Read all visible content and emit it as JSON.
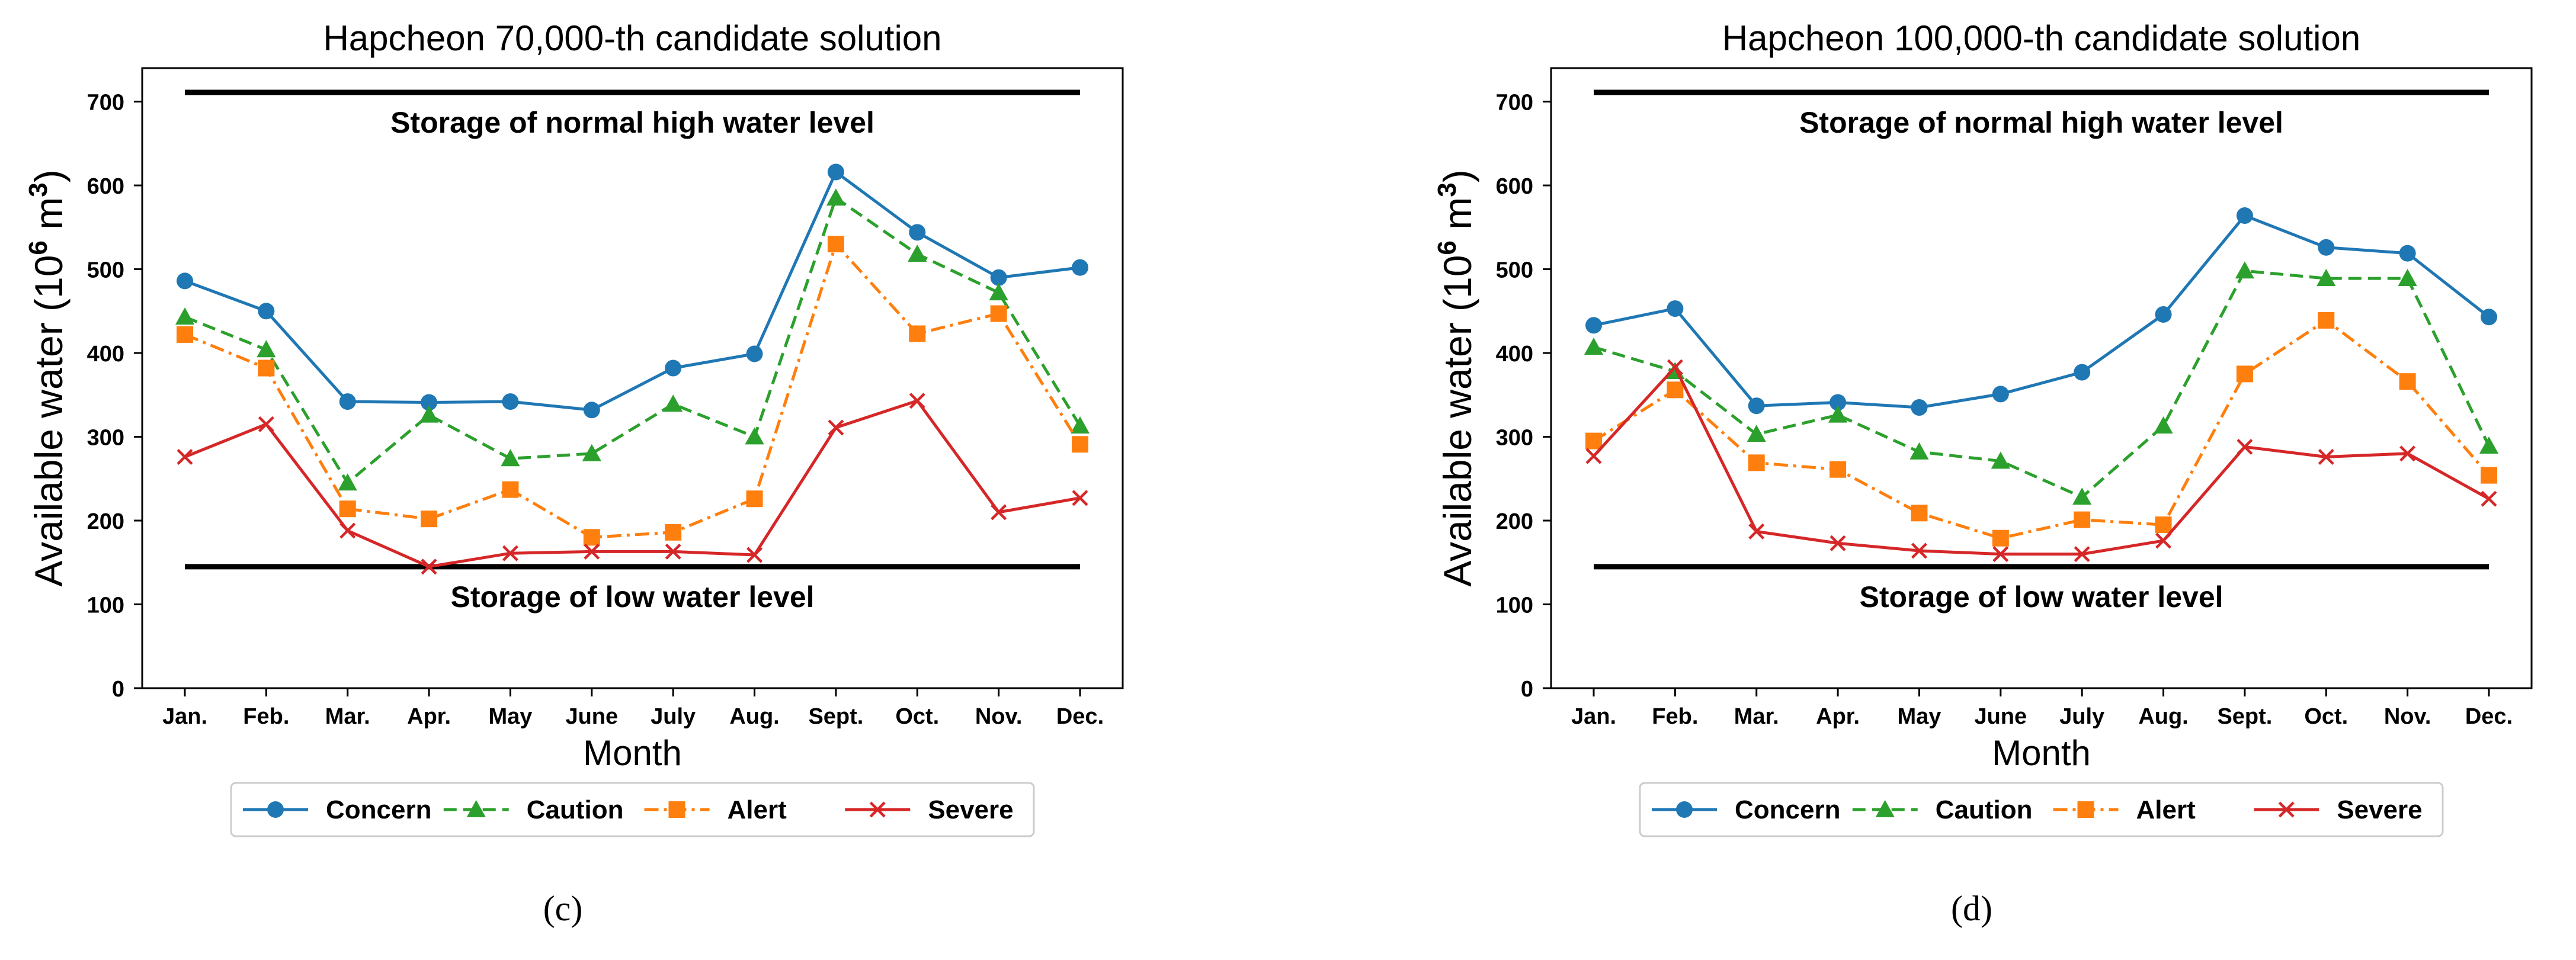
{
  "chart_data": [
    {
      "type": "line",
      "title": "Hapcheon  70,000-th candidate solution",
      "xlabel": "Month",
      "ylabel": "Available water (10^6 m^3)",
      "ylabel_parts": {
        "text": "Available water (10",
        "exp1": "6",
        "unit": " m",
        "exp2": "3",
        "close": ")"
      },
      "ylim": [
        0,
        740
      ],
      "yticks": [
        0,
        100,
        200,
        300,
        400,
        500,
        600,
        700
      ],
      "categories": [
        "Jan.",
        "Feb.",
        "Mar.",
        "Apr.",
        "May",
        "June",
        "July",
        "Aug.",
        "Sept.",
        "Oct.",
        "Nov.",
        "Dec."
      ],
      "series": [
        {
          "name": "Concern",
          "color": "#1f77b4",
          "marker": "circle",
          "dash": "solid",
          "values": [
            486,
            450,
            342,
            341,
            342,
            332,
            382,
            399,
            616,
            544,
            490,
            502
          ]
        },
        {
          "name": "Caution",
          "color": "#2ca02c",
          "marker": "triangle",
          "dash": "dashed",
          "values": [
            443,
            404,
            245,
            326,
            274,
            280,
            339,
            300,
            585,
            518,
            472,
            313
          ]
        },
        {
          "name": "Alert",
          "color": "#ff7f0e",
          "marker": "square",
          "dash": "dashdot",
          "values": [
            422,
            382,
            214,
            202,
            237,
            180,
            186,
            226,
            530,
            423,
            447,
            291
          ]
        },
        {
          "name": "Severe",
          "color": "#d62728",
          "marker": "x",
          "dash": "solid",
          "values": [
            276,
            315,
            188,
            145,
            161,
            163,
            163,
            159,
            311,
            343,
            210,
            227
          ]
        }
      ],
      "reference_lines": [
        {
          "label": "Storage of normal high water level",
          "value": 711
        },
        {
          "label": "Storage of low water level",
          "value": 145
        }
      ],
      "legend_position": "bottom-center",
      "grid": false,
      "caption": "(c)"
    },
    {
      "type": "line",
      "title": "Hapcheon  100,000-th candidate solution",
      "xlabel": "Month",
      "ylabel": "Available water (10^6 m^3)",
      "ylabel_parts": {
        "text": "Available water (10",
        "exp1": "6",
        "unit": " m",
        "exp2": "3",
        "close": ")"
      },
      "ylim": [
        0,
        740
      ],
      "yticks": [
        0,
        100,
        200,
        300,
        400,
        500,
        600,
        700
      ],
      "categories": [
        "Jan.",
        "Feb.",
        "Mar.",
        "Apr.",
        "May",
        "June",
        "July",
        "Aug.",
        "Sept.",
        "Oct.",
        "Nov.",
        "Dec."
      ],
      "series": [
        {
          "name": "Concern",
          "color": "#1f77b4",
          "marker": "circle",
          "dash": "solid",
          "values": [
            433,
            453,
            337,
            341,
            335,
            351,
            377,
            446,
            564,
            526,
            519,
            443
          ]
        },
        {
          "name": "Caution",
          "color": "#2ca02c",
          "marker": "triangle",
          "dash": "dashed",
          "values": [
            407,
            378,
            303,
            326,
            282,
            271,
            228,
            313,
            498,
            489,
            489,
            289
          ]
        },
        {
          "name": "Alert",
          "color": "#ff7f0e",
          "marker": "square",
          "dash": "dashdot",
          "values": [
            295,
            356,
            269,
            261,
            209,
            179,
            201,
            195,
            375,
            439,
            366,
            254
          ]
        },
        {
          "name": "Severe",
          "color": "#d62728",
          "marker": "x",
          "dash": "solid",
          "values": [
            277,
            383,
            187,
            173,
            164,
            160,
            160,
            176,
            288,
            276,
            280,
            226
          ]
        }
      ],
      "reference_lines": [
        {
          "label": "Storage of normal high water level",
          "value": 711
        },
        {
          "label": "Storage of low water level",
          "value": 145
        }
      ],
      "legend_position": "bottom-center",
      "grid": false,
      "caption": "(d)"
    }
  ]
}
